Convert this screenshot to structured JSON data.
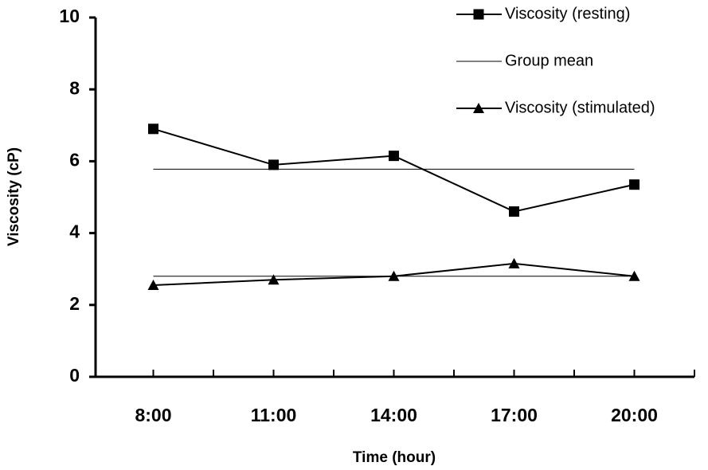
{
  "chart_data": {
    "type": "line",
    "x_label": "Time (hour)",
    "y_label": "Viscosity (cP)",
    "categories": [
      "8:00",
      "11:00",
      "14:00",
      "17:00",
      "20:00"
    ],
    "series": [
      {
        "name": "Viscosity (resting)",
        "color": "#000000",
        "marker": "square",
        "values": [
          6.9,
          5.9,
          6.15,
          4.6,
          5.35
        ]
      },
      {
        "name": "Viscosity (stimulated)",
        "color": "#000000",
        "marker": "triangle",
        "values": [
          2.55,
          2.7,
          2.8,
          3.15,
          2.8
        ]
      }
    ],
    "mean_lines": {
      "name": "Group mean",
      "color": "#000000",
      "values": [
        5.78,
        2.8
      ]
    },
    "ylim": [
      0,
      10
    ],
    "yticks": [
      0,
      2,
      4,
      6,
      8,
      10
    ],
    "grid": false
  }
}
